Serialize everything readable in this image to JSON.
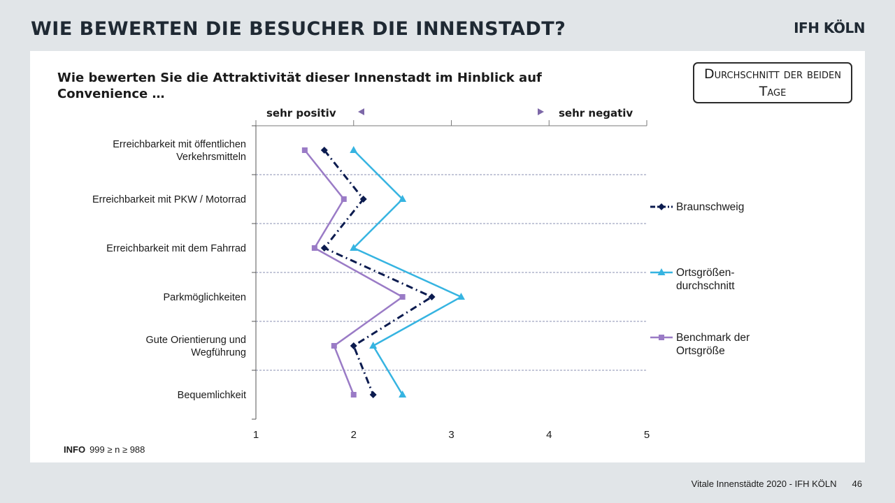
{
  "slide": {
    "title": "WIE BEWERTEN DIE BESUCHER DIE INNENSTADT?",
    "logo": "IFH KÖLN",
    "question": "Wie bewerten Sie die Attraktivität dieser Innenstadt im Hinblick auf Convenience …",
    "average_box": "Durchschnitt der beiden Tage",
    "info_label": "INFO",
    "info_text": "999 ≥ n ≥ 988",
    "footer_text": "Vitale Innenstädte 2020 - IFH KÖLN",
    "page_number": "46"
  },
  "chart_data": {
    "type": "line",
    "orientation": "horizontal",
    "categories": [
      "Erreichbarkeit mit öffentlichen Verkehrsmitteln",
      "Erreichbarkeit mit PKW / Motorrad",
      "Erreichbarkeit mit dem Fahrrad",
      "Parkmöglichkeiten",
      "Gute Orientierung und Wegführung",
      "Bequemlichkeit"
    ],
    "category_label_lines": [
      [
        "Erreichbarkeit mit öffentlichen",
        "Verkehrsmitteln"
      ],
      [
        "Erreichbarkeit mit PKW / Motorrad"
      ],
      [
        "Erreichbarkeit mit dem Fahrrad"
      ],
      [
        "Parkmöglichkeiten"
      ],
      [
        "Gute Orientierung und",
        "Wegführung"
      ],
      [
        "Bequemlichkeit"
      ]
    ],
    "xlim": [
      1,
      5
    ],
    "xticks": [
      "1",
      "2",
      "3",
      "4",
      "5"
    ],
    "scale_left_label": "sehr positiv",
    "scale_right_label": "sehr negativ",
    "series": [
      {
        "name": "Braunschweig",
        "color": "#0b1b4f",
        "marker": "diamond",
        "dash": "dash-dot",
        "values": [
          1.7,
          2.1,
          1.7,
          2.8,
          2.0,
          2.2
        ]
      },
      {
        "name": "Ortsgrößen-durchschnitt",
        "legend_lines": [
          "Ortsgrößen-",
          "durchschnitt"
        ],
        "color": "#36b4e1",
        "marker": "triangle",
        "dash": "solid",
        "values": [
          2.0,
          2.5,
          2.0,
          3.1,
          2.2,
          2.5
        ]
      },
      {
        "name": "Benchmark der Ortsgröße",
        "legend_lines": [
          "Benchmark der",
          "Ortsgröße"
        ],
        "color": "#9a7bc6",
        "marker": "square",
        "dash": "solid",
        "values": [
          1.5,
          1.9,
          1.6,
          2.5,
          1.8,
          2.0
        ]
      }
    ],
    "legend_position": "right",
    "grid": "horizontal dashed separators between categories"
  }
}
